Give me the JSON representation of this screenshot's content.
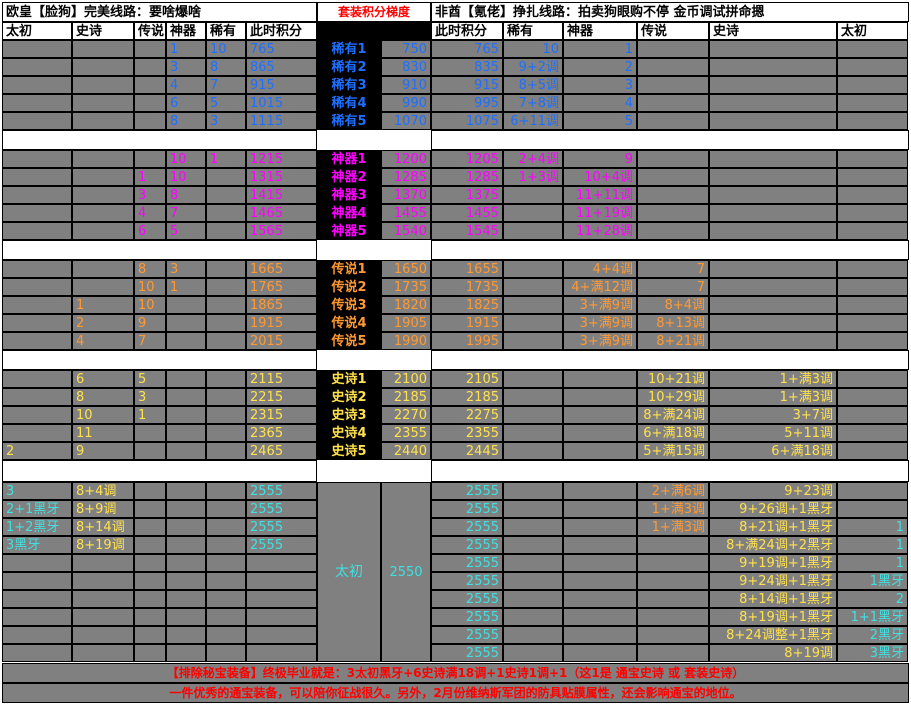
{
  "titles": {
    "left": "欧皇【脸狗】完美线路：要啥爆啥",
    "middle": "套装积分梯度",
    "right": "非酋【氪佬】挣扎线路：拍卖狗眼购不停  金币调试拼命摁"
  },
  "headers_left": [
    "太初",
    "史诗",
    "传说",
    "神器",
    "稀有",
    "此时积分"
  ],
  "headers_right": [
    "此时积分",
    "稀有",
    "神器",
    "传说",
    "史诗",
    "太初"
  ],
  "colors": {
    "blue": "#1e6fff",
    "magenta": "#ff00ff",
    "orange": "#ff9933",
    "yellow": "#ffe14d",
    "cyan": "#40e0e0",
    "white": "#ffffff",
    "red": "#ff0000",
    "gray": "#808080"
  },
  "groups": [
    {
      "color": "blue",
      "rows": [
        {
          "L": [
            "",
            "",
            "",
            "1",
            "10",
            "765"
          ],
          "label": "稀有1",
          "score": "750",
          "R": [
            "765",
            "10",
            "1",
            "",
            "",
            ""
          ]
        },
        {
          "L": [
            "",
            "",
            "",
            "3",
            "8",
            "865"
          ],
          "label": "稀有2",
          "score": "830",
          "R": [
            "835",
            "9+2调",
            "2",
            "",
            "",
            ""
          ]
        },
        {
          "L": [
            "",
            "",
            "",
            "4",
            "7",
            "915"
          ],
          "label": "稀有3",
          "score": "910",
          "R": [
            "915",
            "8+5调",
            "3",
            "",
            "",
            ""
          ]
        },
        {
          "L": [
            "",
            "",
            "",
            "6",
            "5",
            "1015"
          ],
          "label": "稀有4",
          "score": "990",
          "R": [
            "995",
            "7+8调",
            "4",
            "",
            "",
            ""
          ]
        },
        {
          "L": [
            "",
            "",
            "",
            "8",
            "3",
            "1115"
          ],
          "label": "稀有5",
          "score": "1070",
          "R": [
            "1075",
            "6+11调",
            "5",
            "",
            "",
            ""
          ]
        }
      ]
    },
    {
      "color": "magenta",
      "rows": [
        {
          "L": [
            "",
            "",
            "",
            "10",
            "1",
            "1215"
          ],
          "label": "神器1",
          "score": "1200",
          "R": [
            "1205",
            "2+4调",
            "9",
            "",
            "",
            ""
          ]
        },
        {
          "L": [
            "",
            "",
            "1",
            "10",
            "",
            "1315"
          ],
          "label": "神器2",
          "score": "1285",
          "R": [
            "1285",
            "1+3调",
            "10+4调",
            "",
            "",
            ""
          ]
        },
        {
          "L": [
            "",
            "",
            "3",
            "8",
            "",
            "1415"
          ],
          "label": "神器3",
          "score": "1370",
          "R": [
            "1375",
            "",
            "11+11调",
            "",
            "",
            ""
          ]
        },
        {
          "L": [
            "",
            "",
            "4",
            "7",
            "",
            "1465"
          ],
          "label": "神器4",
          "score": "1455",
          "R": [
            "1455",
            "",
            "11+19调",
            "",
            "",
            ""
          ]
        },
        {
          "L": [
            "",
            "",
            "6",
            "5",
            "",
            "1565"
          ],
          "label": "神器5",
          "score": "1540",
          "R": [
            "1545",
            "",
            "11+28调",
            "",
            "",
            ""
          ]
        }
      ]
    },
    {
      "color": "orange",
      "rows": [
        {
          "L": [
            "",
            "",
            "8",
            "3",
            "",
            "1665"
          ],
          "label": "传说1",
          "score": "1650",
          "R": [
            "1655",
            "",
            "4+4调",
            "7",
            "",
            ""
          ]
        },
        {
          "L": [
            "",
            "",
            "10",
            "1",
            "",
            "1765"
          ],
          "label": "传说2",
          "score": "1735",
          "R": [
            "1735",
            "",
            "4+满12调",
            "7",
            "",
            ""
          ]
        },
        {
          "L": [
            "",
            "1",
            "10",
            "",
            "",
            "1865"
          ],
          "label": "传说3",
          "score": "1820",
          "R": [
            "1825",
            "",
            "3+满9调",
            "8+4调",
            "",
            ""
          ]
        },
        {
          "L": [
            "",
            "2",
            "9",
            "",
            "",
            "1915"
          ],
          "label": "传说4",
          "score": "1905",
          "R": [
            "1915",
            "",
            "3+满9调",
            "8+13调",
            "",
            ""
          ]
        },
        {
          "L": [
            "",
            "4",
            "7",
            "",
            "",
            "2015"
          ],
          "label": "传说5",
          "score": "1990",
          "R": [
            "1995",
            "",
            "3+满9调",
            "8+21调",
            "",
            ""
          ]
        }
      ]
    },
    {
      "color": "yellow",
      "rows": [
        {
          "L": [
            "",
            "6",
            "5",
            "",
            "",
            "2115"
          ],
          "label": "史诗1",
          "score": "2100",
          "R": [
            "2105",
            "",
            "",
            "10+21调",
            "1+满3调",
            ""
          ]
        },
        {
          "L": [
            "",
            "8",
            "3",
            "",
            "",
            "2215"
          ],
          "label": "史诗2",
          "score": "2185",
          "R": [
            "2185",
            "",
            "",
            "10+29调",
            "1+满3调",
            ""
          ]
        },
        {
          "L": [
            "",
            "10",
            "1",
            "",
            "",
            "2315"
          ],
          "label": "史诗3",
          "score": "2270",
          "R": [
            "2275",
            "",
            "",
            "8+满24调",
            "3+7调",
            ""
          ]
        },
        {
          "L": [
            "",
            "11",
            "",
            "",
            "",
            "2365"
          ],
          "label": "史诗4",
          "score": "2355",
          "R": [
            "2355",
            "",
            "",
            "6+满18调",
            "5+11调",
            ""
          ]
        },
        {
          "L": [
            "2",
            "9",
            "",
            "",
            "",
            "2465"
          ],
          "label": "史诗5",
          "score": "2440",
          "R": [
            "2445",
            "",
            "",
            "5+满15调",
            "6+满18调",
            ""
          ]
        }
      ]
    }
  ],
  "taichu": {
    "label": "太初",
    "score": "2550",
    "left_rows": [
      [
        "3",
        "8+4调",
        "",
        "",
        "",
        "2555"
      ],
      [
        "2+1黑牙",
        "8+9调",
        "",
        "",
        "",
        "2555"
      ],
      [
        "1+2黑牙",
        "8+14调",
        "",
        "",
        "",
        "2555"
      ],
      [
        "3黑牙",
        "8+19调",
        "",
        "",
        "",
        "2555"
      ],
      [
        "",
        "",
        "",
        "",
        "",
        ""
      ],
      [
        "",
        "",
        "",
        "",
        "",
        ""
      ],
      [
        "",
        "",
        "",
        "",
        "",
        ""
      ],
      [
        "",
        "",
        "",
        "",
        "",
        ""
      ],
      [
        "",
        "",
        "",
        "",
        "",
        ""
      ],
      [
        "",
        "",
        "",
        "",
        "",
        ""
      ]
    ],
    "right_rows": [
      [
        "2555",
        "",
        "",
        "2+满6调",
        "9+23调",
        ""
      ],
      [
        "2555",
        "",
        "",
        "1+满3调",
        "9+26调+1黑牙",
        ""
      ],
      [
        "2555",
        "",
        "",
        "1+满3调",
        "8+21调+1黑牙",
        "1"
      ],
      [
        "2555",
        "",
        "",
        "",
        "8+满24调+2黑牙",
        "1"
      ],
      [
        "2555",
        "",
        "",
        "",
        "9+19调+1黑牙",
        "1"
      ],
      [
        "2555",
        "",
        "",
        "",
        "9+24调+1黑牙",
        "1黑牙"
      ],
      [
        "2555",
        "",
        "",
        "",
        "8+14调+1黑牙",
        "2"
      ],
      [
        "2555",
        "",
        "",
        "",
        "8+19调+1黑牙",
        "1+1黑牙"
      ],
      [
        "2555",
        "",
        "",
        "",
        "8+24调整+1黑牙",
        "2黑牙"
      ],
      [
        "2555",
        "",
        "",
        "",
        "8+19调",
        "3黑牙"
      ]
    ]
  },
  "footer": {
    "line1": "【排除秘宝装备】终极毕业就是：3太初黑牙+6史诗满18调+1史诗1调+1（这1是  通宝史诗  或  套装史诗）",
    "line2": "一件优秀的通宝装备，可以陪你征战很久。另外，2月份维纳斯军团的防具贴膜属性，还会影响通宝的地位。"
  }
}
